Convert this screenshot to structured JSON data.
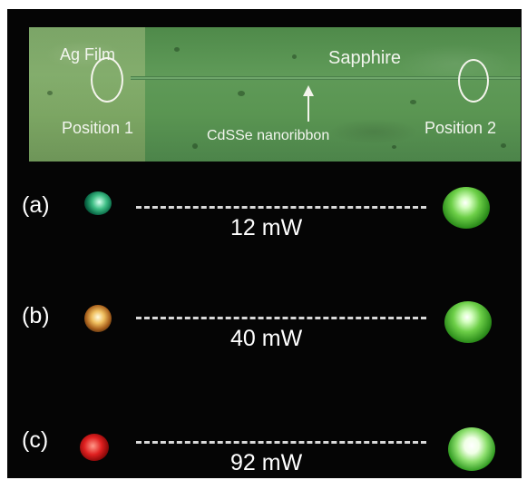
{
  "micrograph": {
    "ag_film_label": "Ag Film",
    "sapphire_label": "Sapphire",
    "position1_label": "Position 1",
    "position2_label": "Position 2",
    "nanoribbon_label": "CdSSe nanoribbon"
  },
  "panels": [
    {
      "letter": "(a)",
      "power": "12 mW",
      "left_emission_color": "#2fae78",
      "right_emission_color": "#5cc43c"
    },
    {
      "letter": "(b)",
      "power": "40 mW",
      "left_emission_color": "#f0c060",
      "right_emission_color": "#5cc43c"
    },
    {
      "letter": "(c)",
      "power": "92 mW",
      "left_emission_color": "#e02020",
      "right_emission_color": "#7fd860"
    }
  ],
  "colors": {
    "background": "#050505",
    "micrograph_green": "#5a9552",
    "text": "#ffffff"
  }
}
